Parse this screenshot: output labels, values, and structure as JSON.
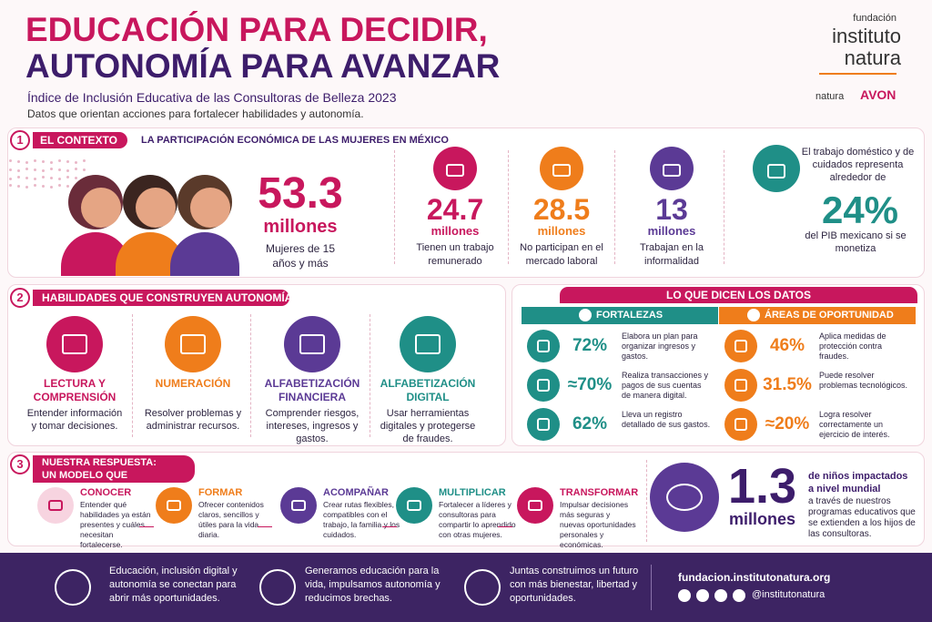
{
  "header": {
    "title_line1": "EDUCACIÓN PARA DECIDIR,",
    "title_line2": "AUTONOMÍA PARA AVANZAR",
    "subtitle": "Índice de Inclusión Educativa de las Consultoras de Belleza 2023",
    "tagline": "Datos que orientan acciones para fortalecer habilidades y autonomía."
  },
  "logo": {
    "org": "fundación",
    "name1": "instituto",
    "name2": "natura",
    "brand1": "natura",
    "brand2": "AVON"
  },
  "section1": {
    "number": "1",
    "title": "EL CONTEXTO",
    "heading": "LA PARTICIPACIÓN ECONÓMICA DE LAS MUJERES EN MÉXICO",
    "main": {
      "value": "53.3",
      "unit": "millones",
      "label": "Mujeres de 15 años y más"
    },
    "stats": [
      {
        "value": "24.7",
        "unit": "millones",
        "label": "Tienen un trabajo remunerado"
      },
      {
        "value": "28.5",
        "unit": "millones",
        "label": "No participan en el mercado laboral"
      },
      {
        "value": "13",
        "unit": "millones",
        "label": "Trabajan en la informalidad"
      }
    ],
    "gdp": {
      "text_before": "El trabajo doméstico y de cuidados representa alrededor de",
      "value": "24%",
      "text_after": "del PIB mexicano si se monetiza"
    }
  },
  "section2": {
    "number": "2",
    "title": "HABILIDADES QUE CONSTRUYEN AUTONOMÍA",
    "skills": [
      {
        "title": "LECTURA Y COMPRENSIÓN",
        "text": "Entender información y tomar decisiones."
      },
      {
        "title": "NUMERACIÓN",
        "text": "Resolver problemas y administrar recursos."
      },
      {
        "title": "ALFABETIZACIÓN FINANCIERA",
        "text": "Comprender riesgos, intereses, ingresos y gastos."
      },
      {
        "title": "ALFABETIZACIÓN DIGITAL",
        "text": "Usar herramientas digitales y protegerse de fraudes."
      }
    ]
  },
  "data_panel": {
    "title": "LO QUE DICEN LOS DATOS",
    "strengths": {
      "title": "FORTALEZAS",
      "items": [
        {
          "value": "72%",
          "text": "Elabora un plan para organizar ingresos y gastos."
        },
        {
          "value": "≈70%",
          "text": "Realiza transacciones y pagos de sus cuentas de manera digital."
        },
        {
          "value": "62%",
          "text": "Lleva un registro detallado de sus gastos."
        }
      ]
    },
    "opportunities": {
      "title": "ÁREAS DE OPORTUNIDAD",
      "items": [
        {
          "value": "46%",
          "text": "Aplica medidas de protección contra fraudes."
        },
        {
          "value": "31.5%",
          "text": "Puede resolver problemas tecnológicos."
        },
        {
          "value": "≈20%",
          "text": "Logra resolver correctamente un ejercicio de interés."
        }
      ]
    }
  },
  "section3": {
    "number": "3",
    "title_line1": "NUESTRA RESPUESTA:",
    "title_line2": "UN MODELO QUE TRANSFORMA",
    "steps": [
      {
        "title": "CONOCER",
        "text": "Entender qué habilidades ya están presentes y cuáles necesitan fortalecerse."
      },
      {
        "title": "FORMAR",
        "text": "Ofrecer contenidos claros, sencillos y útiles para la vida diaria."
      },
      {
        "title": "ACOMPAÑAR",
        "text": "Crear rutas flexibles, compatibles con el trabajo, la familia y los cuidados."
      },
      {
        "title": "MULTIPLICAR",
        "text": "Fortalecer a líderes y consultoras para compartir lo aprendido con otras mujeres."
      },
      {
        "title": "TRANSFORMAR",
        "text": "Impulsar decisiones más seguras y nuevas oportunidades personales y económicas."
      }
    ],
    "impact": {
      "value": "1.3",
      "unit": "millones",
      "headline": "de niños impactados a nivel mundial",
      "text": "a través de nuestros programas educativos que se extienden a los hijos de las consultoras."
    }
  },
  "footer": {
    "messages": [
      "Educación, inclusión digital y autonomía se conectan para abrir más oportunidades.",
      "Generamos educación para la vida, impulsamos autonomía y reducimos brechas.",
      "Juntas construimos un futuro con más bienestar, libertad y oportunidades."
    ],
    "website": "fundacion.institutonatura.org",
    "handle": "@institutonatura"
  }
}
